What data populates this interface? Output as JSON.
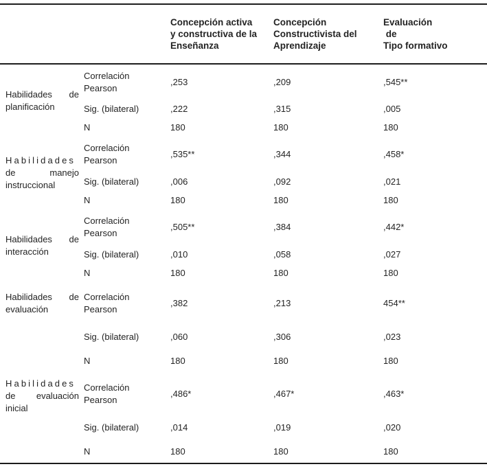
{
  "colors": {
    "text": "#232323",
    "rule": "#1c1c1c",
    "background": "#ffffff"
  },
  "header": {
    "col1": {
      "lines": [
        "Concepción activa",
        "y constructiva de la",
        "Enseñanza"
      ],
      "label": "Concepción activa y constructiva de la Enseñanza"
    },
    "col2": {
      "lines": [
        "Concepción",
        "Constructivista del",
        "Aprendizaje"
      ],
      "label": "Concepción Constructivista del Aprendizaje"
    },
    "col3": {
      "lines": [
        "Evaluación",
        " de",
        "Tipo formativo"
      ],
      "label": "Evaluación de Tipo formativo"
    }
  },
  "row_labels": {
    "pearson": "Correlación Pearson",
    "sig": "Sig. (bilateral)",
    "n": "N"
  },
  "groups": [
    {
      "label": "Habilidades de planificación",
      "lines": {
        "a": "Habilidades",
        "b": "de",
        "c": "planificación"
      },
      "pearson": [
        ",253",
        ",209",
        ",545**"
      ],
      "sig": [
        ",222",
        ",315",
        ",005"
      ],
      "n": [
        "180",
        "180",
        "180"
      ]
    },
    {
      "label": "Habilidades de manejo instruccional",
      "lines": {
        "a": "Habilidades",
        "b": "de",
        "c": "manejo",
        "d": "instruccional"
      },
      "pearson": [
        ",535**",
        ",344",
        ",458*"
      ],
      "sig": [
        ",006",
        ",092",
        ",021"
      ],
      "n": [
        "180",
        "180",
        "180"
      ]
    },
    {
      "label": "Habilidades de interacción",
      "lines": {
        "a": "Habilidades",
        "b": "de",
        "c": "interacción"
      },
      "pearson": [
        ",505**",
        ",384",
        ",442*"
      ],
      "sig": [
        ",010",
        ",058",
        ",027"
      ],
      "n": [
        "180",
        "180",
        "180"
      ]
    },
    {
      "label": "Habilidades de evaluación",
      "lines": {
        "a": "Habilidades",
        "b": "de",
        "c": "evaluación"
      },
      "pearson": [
        ",382",
        ",213",
        "454**"
      ],
      "sig": [
        ",060",
        ",306",
        ",023"
      ],
      "n": [
        "180",
        "180",
        "180"
      ]
    },
    {
      "label": "Habilidades de evaluación inicial",
      "lines": {
        "a": "Habilidades",
        "b": "de",
        "c": "evaluación",
        "d": "inicial"
      },
      "pearson": [
        ",486*",
        ",467*",
        ",463*"
      ],
      "sig": [
        ",014",
        ",019",
        ",020"
      ],
      "n": [
        "180",
        "180",
        "180"
      ]
    }
  ]
}
